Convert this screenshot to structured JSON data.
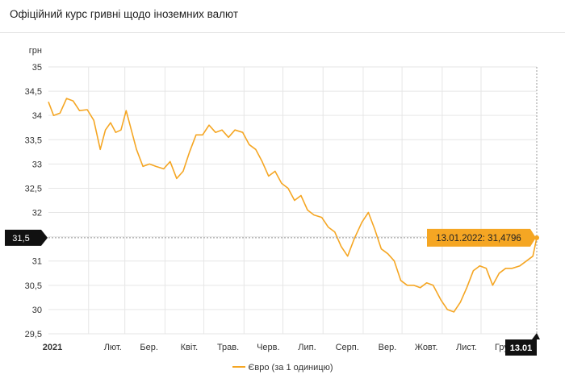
{
  "header": {
    "title": "Офіційний курс гривні щодо іноземних валют"
  },
  "colors": {
    "series": "#f5a623",
    "grid": "#e6e6e6",
    "tooltip_bg": "#f5a623",
    "marker_bg": "#111111"
  },
  "chart_data": {
    "type": "line",
    "ylabel": "грн",
    "ylim": [
      29.5,
      35
    ],
    "y_ticks": [
      "35",
      "34,5",
      "34",
      "33,5",
      "33",
      "32,5",
      "32",
      "31,5",
      "31",
      "30,5",
      "30",
      "29,5"
    ],
    "x_tick_labels": [
      "2021",
      "Лют.",
      "Бер.",
      "Квіт.",
      "Трав.",
      "Черв.",
      "Лип.",
      "Серп.",
      "Вер.",
      "Жовт.",
      "Лист.",
      "Груд.",
      "13.01"
    ],
    "grid": true,
    "legend_position": "bottom",
    "series": [
      {
        "name": "Євро (за 1 одиницю)",
        "x": [
          "2021-01-01",
          "2021-01-05",
          "2021-01-10",
          "2021-01-15",
          "2021-01-20",
          "2021-01-25",
          "2021-01-31",
          "2021-02-05",
          "2021-02-10",
          "2021-02-14",
          "2021-02-18",
          "2021-02-22",
          "2021-02-26",
          "2021-03-02",
          "2021-03-06",
          "2021-03-10",
          "2021-03-15",
          "2021-03-20",
          "2021-03-25",
          "2021-03-31",
          "2021-04-05",
          "2021-04-10",
          "2021-04-15",
          "2021-04-20",
          "2021-04-25",
          "2021-04-30",
          "2021-05-05",
          "2021-05-10",
          "2021-05-15",
          "2021-05-20",
          "2021-05-25",
          "2021-05-31",
          "2021-06-05",
          "2021-06-10",
          "2021-06-15",
          "2021-06-20",
          "2021-06-25",
          "2021-06-30",
          "2021-07-05",
          "2021-07-10",
          "2021-07-15",
          "2021-07-20",
          "2021-07-25",
          "2021-07-31",
          "2021-08-05",
          "2021-08-10",
          "2021-08-15",
          "2021-08-20",
          "2021-08-25",
          "2021-08-31",
          "2021-09-05",
          "2021-09-10",
          "2021-09-15",
          "2021-09-20",
          "2021-09-25",
          "2021-09-30",
          "2021-10-05",
          "2021-10-10",
          "2021-10-15",
          "2021-10-20",
          "2021-10-25",
          "2021-10-31",
          "2021-11-05",
          "2021-11-10",
          "2021-11-15",
          "2021-11-20",
          "2021-11-25",
          "2021-11-30",
          "2021-12-05",
          "2021-12-10",
          "2021-12-15",
          "2021-12-20",
          "2021-12-25",
          "2021-12-31",
          "2022-01-05",
          "2022-01-10",
          "2022-01-13"
        ],
        "values": [
          34.28,
          34.0,
          34.05,
          34.35,
          34.3,
          34.1,
          34.12,
          33.9,
          33.3,
          33.7,
          33.85,
          33.65,
          33.7,
          34.1,
          33.7,
          33.3,
          32.95,
          33.0,
          32.95,
          32.9,
          33.05,
          32.7,
          32.85,
          33.25,
          33.6,
          33.6,
          33.8,
          33.65,
          33.7,
          33.55,
          33.7,
          33.65,
          33.4,
          33.3,
          33.05,
          32.75,
          32.85,
          32.6,
          32.5,
          32.25,
          32.35,
          32.05,
          31.95,
          31.9,
          31.7,
          31.6,
          31.3,
          31.1,
          31.45,
          31.8,
          32.0,
          31.65,
          31.25,
          31.15,
          31.0,
          30.6,
          30.5,
          30.5,
          30.45,
          30.55,
          30.5,
          30.2,
          30.0,
          29.95,
          30.15,
          30.45,
          30.8,
          30.9,
          30.85,
          30.5,
          30.75,
          30.85,
          30.85,
          30.9,
          31.0,
          31.1,
          31.4796
        ]
      }
    ],
    "tooltip_text": "13.01.2022: 31,4796",
    "crosshair_label": "31,5",
    "current_x_label": "13.01"
  }
}
